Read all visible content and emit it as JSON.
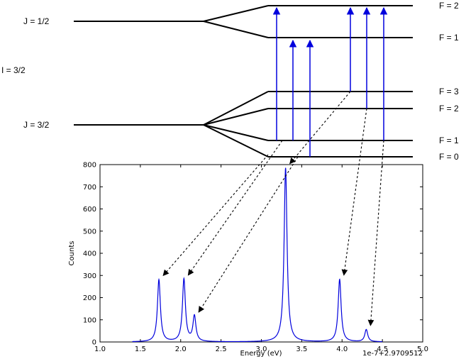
{
  "levels": {
    "upper": {
      "label": "J = 1/2",
      "sublevels": [
        "F = 2",
        "F = 1"
      ]
    },
    "nuclear_spin": "I = 3/2",
    "lower": {
      "label": "J = 3/2",
      "sublevels": [
        "F = 3",
        "F = 2",
        "F = 1",
        "F = 0"
      ]
    }
  },
  "transitions": [
    {
      "from": "F = 1",
      "to": "F = 2",
      "peak_energy": 1.73
    },
    {
      "from": "F = 1",
      "to": "F = 1",
      "peak_energy": 2.04
    },
    {
      "from": "F = 0",
      "to": "F = 1",
      "peak_energy": 2.17
    },
    {
      "from": "F = 3",
      "to": "F = 2",
      "peak_energy": 3.3
    },
    {
      "from": "F = 2",
      "to": "F = 2",
      "peak_energy": 3.97
    },
    {
      "from": "F = 1",
      "to": "F = 2",
      "peak_energy": 4.3
    }
  ],
  "colors": {
    "transition_arrow": "#0000dd",
    "spectrum_line": "#0000dd",
    "level_line": "#000000"
  },
  "chart_data": {
    "type": "line",
    "xlabel": "Energy (eV)",
    "ylabel": "Counts",
    "offset_label": "1e-7+2.9709512",
    "xlim": [
      1.0,
      5.0
    ],
    "ylim": [
      0,
      800
    ],
    "xticks": [
      "1.0",
      "1.5",
      "2.0",
      "2.5",
      "3.0",
      "3.5",
      "4.0",
      "4.5",
      "5.0"
    ],
    "yticks": [
      "0",
      "100",
      "200",
      "300",
      "400",
      "500",
      "600",
      "700",
      "800"
    ],
    "grid": false,
    "series": [
      {
        "peaks": [
          {
            "x": 1.73,
            "y": 280
          },
          {
            "x": 2.04,
            "y": 282
          },
          {
            "x": 2.17,
            "y": 115
          },
          {
            "x": 3.3,
            "y": 785
          },
          {
            "x": 3.97,
            "y": 282
          },
          {
            "x": 4.3,
            "y": 55
          }
        ]
      }
    ]
  }
}
